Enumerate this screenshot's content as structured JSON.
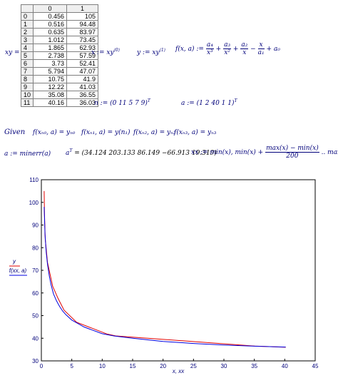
{
  "matrix": {
    "name": "xy",
    "col_headers": [
      "0",
      "1"
    ],
    "rows": [
      {
        "i": "0",
        "a": "0.456",
        "b": "105"
      },
      {
        "i": "1",
        "a": "0.516",
        "b": "94.48"
      },
      {
        "i": "2",
        "a": "0.635",
        "b": "83.97"
      },
      {
        "i": "3",
        "a": "1.012",
        "b": "73.45"
      },
      {
        "i": "4",
        "a": "1.865",
        "b": "62.93"
      },
      {
        "i": "5",
        "a": "2.738",
        "b": "57.59"
      },
      {
        "i": "6",
        "a": "3.73",
        "b": "52.41"
      },
      {
        "i": "7",
        "a": "5.794",
        "b": "47.07"
      },
      {
        "i": "8",
        "a": "10.75",
        "b": "41.9"
      },
      {
        "i": "9",
        "a": "12.22",
        "b": "41.03"
      },
      {
        "i": "10",
        "a": "35.08",
        "b": "36.55"
      },
      {
        "i": "11",
        "a": "40.16",
        "b": "36.03"
      }
    ]
  },
  "defs": {
    "xy_label": "xy =",
    "x_def": "x := xy",
    "x_sup": "⟨0⟩",
    "y_def": "y := xy",
    "y_sup": "⟨1⟩",
    "f_lhs": "f(x, a) :=",
    "f_t1_num": "a₄",
    "f_t1_den": "x³",
    "f_t2_num": "a₃",
    "f_t2_den": "x²",
    "f_t3_num": "a₂",
    "f_t3_den": "x",
    "f_t4_num": "x",
    "f_t4_den": "a₁",
    "f_tail": "+ a₀",
    "n_def": "n := (0  11  5  7  9)",
    "a_def": "a := (1  2  40  1  1)",
    "transpose": "T"
  },
  "given": {
    "keyword": "Given",
    "constraints": [
      "f(xₙ₀, a) = yₙ₀",
      "f(xₙ₁, a) = y(n₁)",
      "f(xₙ₂, a) = yₙ₂",
      "f(xₙ₃, a) = yₙ₃"
    ]
  },
  "results": {
    "minerr": "a := minerr(a)",
    "aT_lhs": "a",
    "aT_rhs": "= (34.124  203.133  86.149  −66.913  19.319)",
    "xx_lhs": "xx := min(x), min(x) +",
    "xx_num": "max(x) − min(x)",
    "xx_den": "200",
    "xx_tail": ".. max(x)"
  },
  "chart_data": {
    "type": "line",
    "xlabel": "x, xx",
    "ylabel_series": [
      "y",
      "f(xx, a)"
    ],
    "xlim": [
      0,
      45
    ],
    "ylim": [
      30,
      110
    ],
    "xticks": [
      0,
      5,
      10,
      15,
      20,
      25,
      30,
      35,
      40,
      45
    ],
    "yticks": [
      30,
      40,
      50,
      60,
      70,
      80,
      90,
      100,
      110
    ],
    "grid": false,
    "series": [
      {
        "name": "y",
        "color": "#e00000",
        "x": [
          0.456,
          0.516,
          0.635,
          1.012,
          1.865,
          2.738,
          3.73,
          5.794,
          10.75,
          12.22,
          35.08,
          40.16
        ],
        "y": [
          105,
          94.48,
          83.97,
          73.45,
          62.93,
          57.59,
          52.41,
          47.07,
          41.9,
          41.03,
          36.55,
          36.03
        ]
      },
      {
        "name": "f(xx, a)",
        "color": "#0000e0",
        "x": [
          0.456,
          0.6,
          0.8,
          1.0,
          1.3,
          1.6,
          2.0,
          2.5,
          3.0,
          3.5,
          4.0,
          5.0,
          6.0,
          7.0,
          8.0,
          10.0,
          12.0,
          15.0,
          20.0,
          25.0,
          30.0,
          35.0,
          40.16
        ],
        "y": [
          98,
          86,
          78,
          73,
          67.5,
          63.5,
          59.5,
          56.5,
          54,
          52,
          50.5,
          48,
          46.5,
          45,
          44,
          42,
          41,
          40,
          38.6,
          37.7,
          37,
          36.5,
          36.1
        ]
      }
    ]
  },
  "colors": {
    "math": "#00007a",
    "series_y": "#e00000",
    "series_f": "#0000e0"
  }
}
